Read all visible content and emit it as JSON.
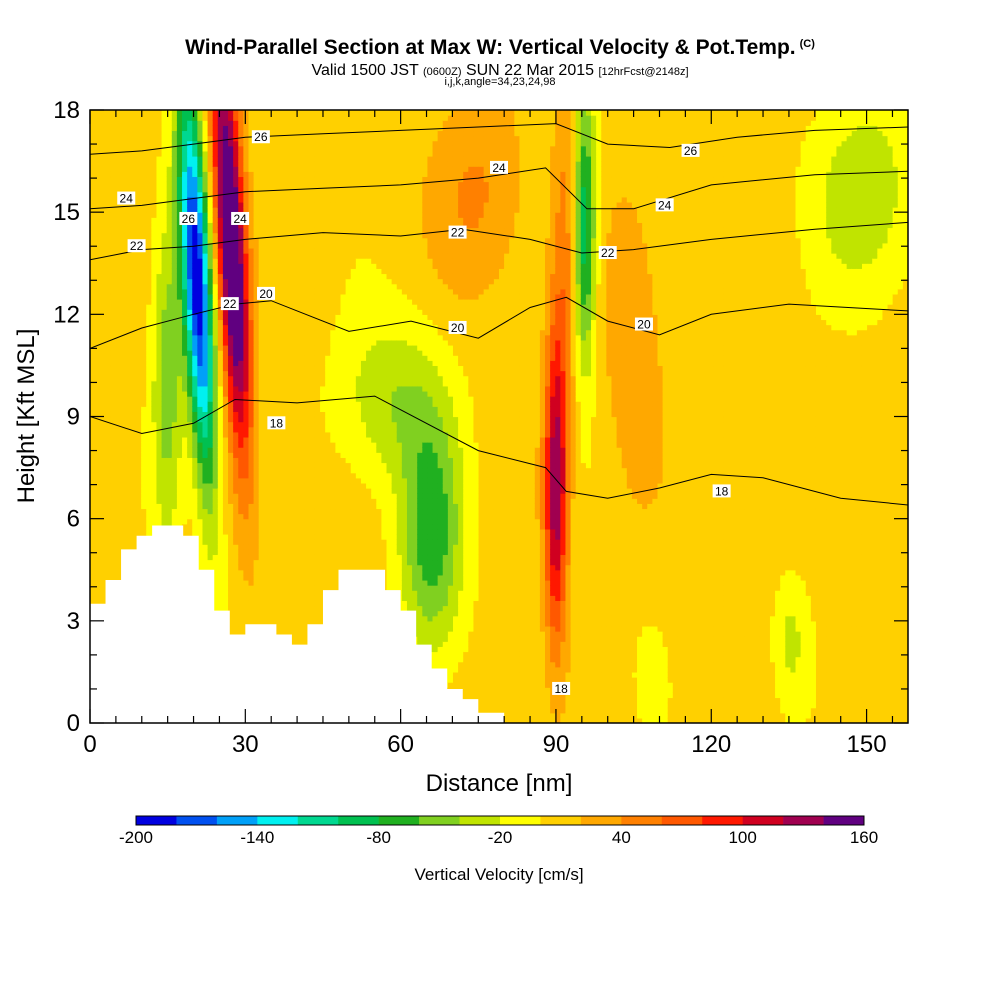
{
  "header": {
    "title": "Wind-Parallel Section at Max W: Vertical Velocity & Pot.Temp.",
    "title_suffix": "(C)",
    "valid_prefix": "Valid 1500 JST",
    "valid_utc": "(0600Z)",
    "valid_date": "SUN 22 Mar 2015",
    "forecast": "[12hrFcst@2148z]",
    "indices": "i,j,k,angle=34,23,24,98"
  },
  "chart_data": {
    "type": "heatmap",
    "xlabel": "Distance [nm]",
    "ylabel": "Height [Kft MSL]",
    "xlim": [
      0,
      158
    ],
    "ylim": [
      0,
      18
    ],
    "x_ticks": [
      0,
      30,
      60,
      90,
      120,
      150
    ],
    "y_ticks": [
      0,
      3,
      6,
      9,
      12,
      15,
      18
    ],
    "colorbar": {
      "label": "Vertical Velocity [cm/s]",
      "tick_labels": [
        "-200",
        "-140",
        "-80",
        "-20",
        "40",
        "100",
        "160"
      ],
      "tick_values": [
        -200,
        -140,
        -80,
        -20,
        40,
        100,
        160
      ],
      "colors": [
        "#0000e0",
        "#0050f0",
        "#00a0f8",
        "#00f0f0",
        "#00d890",
        "#00c050",
        "#20b020",
        "#80d020",
        "#c0e400",
        "#ffff00",
        "#ffd000",
        "#ffa800",
        "#ff8000",
        "#ff5800",
        "#ff1800",
        "#d00020",
        "#a00050",
        "#600080"
      ]
    },
    "velocity_features": [
      {
        "center_x": 22,
        "y_range": [
          6,
          18
        ],
        "value": -140,
        "note": "downdraft"
      },
      {
        "center_x": 28,
        "y_range": [
          9,
          18
        ],
        "value": 150,
        "note": "updraft"
      },
      {
        "center_x": 90,
        "y_range": [
          4,
          12
        ],
        "value": 100,
        "note": "updraft"
      },
      {
        "center_x": 95,
        "y_range": [
          12,
          18
        ],
        "value": -80,
        "note": "downdraft"
      },
      {
        "center_x": 65,
        "y_range": [
          3,
          7
        ],
        "value": -80,
        "note": "downdraft"
      }
    ],
    "terrain": [
      {
        "x": 0,
        "h": 3.5
      },
      {
        "x": 3,
        "h": 4.2
      },
      {
        "x": 6,
        "h": 5.1
      },
      {
        "x": 9,
        "h": 5.5
      },
      {
        "x": 12,
        "h": 5.8
      },
      {
        "x": 18,
        "h": 5.5
      },
      {
        "x": 21,
        "h": 4.5
      },
      {
        "x": 24,
        "h": 3.3
      },
      {
        "x": 27,
        "h": 2.6
      },
      {
        "x": 30,
        "h": 2.9
      },
      {
        "x": 36,
        "h": 2.6
      },
      {
        "x": 39,
        "h": 2.3
      },
      {
        "x": 42,
        "h": 2.9
      },
      {
        "x": 45,
        "h": 3.9
      },
      {
        "x": 48,
        "h": 4.5
      },
      {
        "x": 57,
        "h": 3.9
      },
      {
        "x": 60,
        "h": 3.3
      },
      {
        "x": 63,
        "h": 2.3
      },
      {
        "x": 66,
        "h": 1.6
      },
      {
        "x": 69,
        "h": 1.0
      },
      {
        "x": 72,
        "h": 0.7
      },
      {
        "x": 75,
        "h": 0.3
      },
      {
        "x": 80,
        "h": 0.0
      },
      {
        "x": 158,
        "h": 0.0
      }
    ],
    "contours": [
      {
        "level": 18,
        "label": "18",
        "points": [
          [
            0,
            9.0
          ],
          [
            10,
            8.5
          ],
          [
            20,
            8.8
          ],
          [
            28,
            9.5
          ],
          [
            40,
            9.4
          ],
          [
            55,
            9.6
          ],
          [
            75,
            8.0
          ],
          [
            88,
            7.5
          ],
          [
            92,
            6.8
          ],
          [
            100,
            6.6
          ],
          [
            110,
            6.9
          ],
          [
            120,
            7.3
          ],
          [
            130,
            7.2
          ],
          [
            145,
            6.6
          ],
          [
            158,
            6.4
          ]
        ]
      },
      {
        "level": 20,
        "label": "20",
        "points": [
          [
            0,
            11.0
          ],
          [
            10,
            11.6
          ],
          [
            20,
            12.0
          ],
          [
            28,
            12.3
          ],
          [
            35,
            12.4
          ],
          [
            50,
            11.5
          ],
          [
            62,
            11.8
          ],
          [
            75,
            11.3
          ],
          [
            85,
            12.2
          ],
          [
            92,
            12.5
          ],
          [
            100,
            11.8
          ],
          [
            110,
            11.4
          ],
          [
            120,
            12.0
          ],
          [
            135,
            12.3
          ],
          [
            158,
            12.1
          ]
        ]
      },
      {
        "level": 22,
        "label": "22",
        "points": [
          [
            0,
            13.6
          ],
          [
            10,
            13.9
          ],
          [
            20,
            14.0
          ],
          [
            30,
            14.2
          ],
          [
            45,
            14.4
          ],
          [
            60,
            14.3
          ],
          [
            72,
            14.5
          ],
          [
            85,
            14.2
          ],
          [
            95,
            13.8
          ],
          [
            105,
            13.9
          ],
          [
            120,
            14.2
          ],
          [
            140,
            14.5
          ],
          [
            158,
            14.7
          ]
        ]
      },
      {
        "level": 24,
        "label": "24",
        "points": [
          [
            0,
            15.1
          ],
          [
            10,
            15.2
          ],
          [
            20,
            15.4
          ],
          [
            30,
            15.6
          ],
          [
            45,
            15.7
          ],
          [
            60,
            15.8
          ],
          [
            75,
            16.0
          ],
          [
            88,
            16.3
          ],
          [
            96,
            15.1
          ],
          [
            105,
            15.1
          ],
          [
            120,
            15.8
          ],
          [
            140,
            16.1
          ],
          [
            158,
            16.2
          ]
        ]
      },
      {
        "level": 26,
        "label": "26",
        "points": [
          [
            0,
            16.7
          ],
          [
            10,
            16.8
          ],
          [
            20,
            17.0
          ],
          [
            30,
            17.2
          ],
          [
            45,
            17.3
          ],
          [
            60,
            17.4
          ],
          [
            75,
            17.5
          ],
          [
            90,
            17.6
          ],
          [
            100,
            17.0
          ],
          [
            112,
            16.9
          ],
          [
            125,
            17.2
          ],
          [
            140,
            17.4
          ],
          [
            158,
            17.5
          ]
        ]
      }
    ],
    "contour_labels": [
      {
        "text": "24",
        "x": 7,
        "y": 15.4
      },
      {
        "text": "22",
        "x": 9,
        "y": 14.0
      },
      {
        "text": "26",
        "x": 33,
        "y": 17.2
      },
      {
        "text": "26",
        "x": 19,
        "y": 14.8
      },
      {
        "text": "24",
        "x": 29,
        "y": 14.8
      },
      {
        "text": "22",
        "x": 27,
        "y": 12.3
      },
      {
        "text": "20",
        "x": 34,
        "y": 12.6
      },
      {
        "text": "18",
        "x": 36,
        "y": 8.8
      },
      {
        "text": "22",
        "x": 71,
        "y": 14.4
      },
      {
        "text": "24",
        "x": 79,
        "y": 16.3
      },
      {
        "text": "20",
        "x": 71,
        "y": 11.6
      },
      {
        "text": "22",
        "x": 100,
        "y": 13.8
      },
      {
        "text": "20",
        "x": 107,
        "y": 11.7
      },
      {
        "text": "24",
        "x": 111,
        "y": 15.2
      },
      {
        "text": "26",
        "x": 116,
        "y": 16.8
      },
      {
        "text": "18",
        "x": 122,
        "y": 6.8
      },
      {
        "text": "18",
        "x": 91,
        "y": 1.0
      }
    ]
  }
}
